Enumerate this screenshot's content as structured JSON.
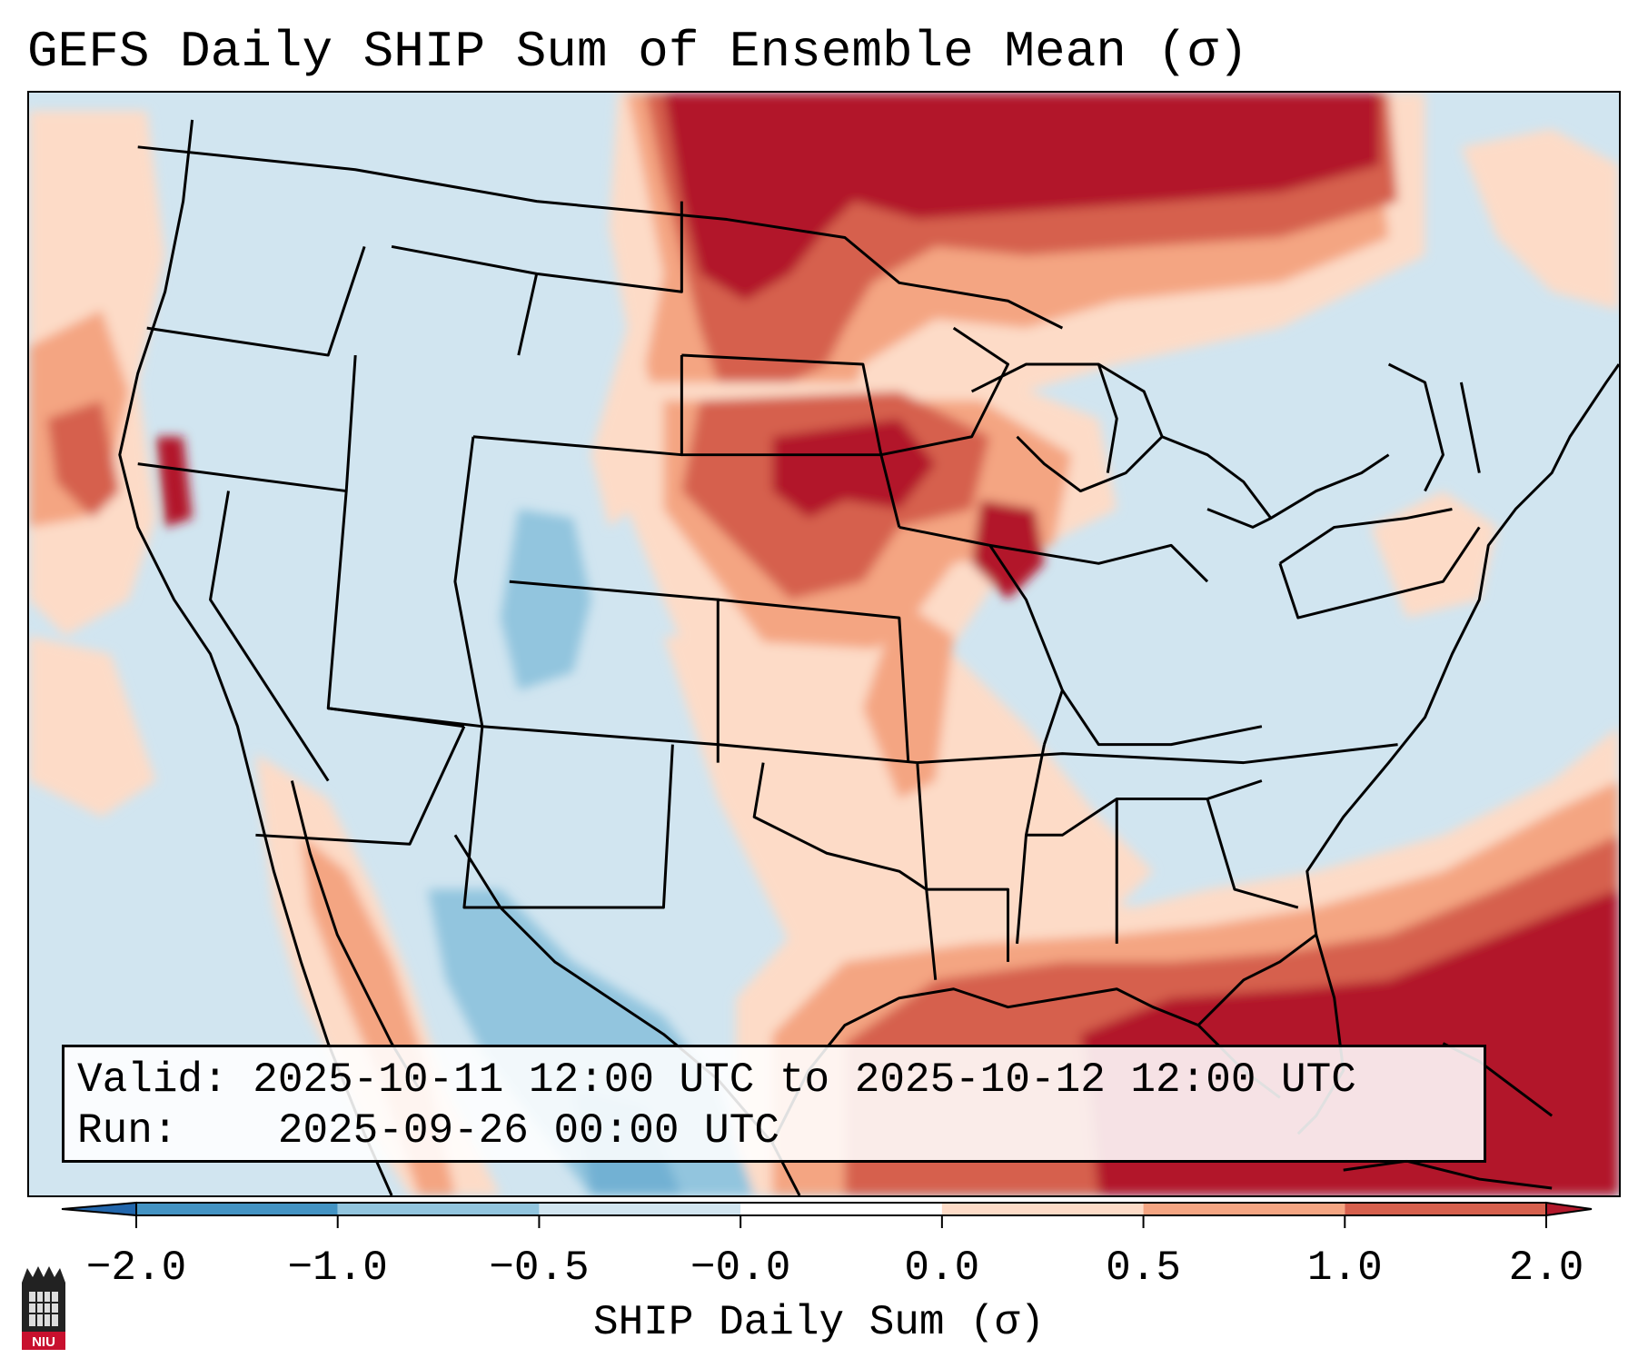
{
  "title": "GEFS Daily SHIP Sum of Ensemble Mean (σ)",
  "valid_label": "Valid:",
  "valid_value": "2025-10-11 12:00 UTC to 2025-10-12 12:00 UTC",
  "run_label": "Run:",
  "run_value": "2025-09-26 00:00 UTC",
  "colorbar": {
    "label": "SHIP Daily Sum (σ)",
    "ticks": [
      "−2.0",
      "−1.0",
      "−0.5",
      "−0.0",
      "0.0",
      "0.5",
      "1.0",
      "2.0"
    ],
    "colors": [
      "#2166ac",
      "#4393c3",
      "#92c5de",
      "#d1e5f0",
      "#ffffff",
      "#fddbc7",
      "#f4a582",
      "#d6604d",
      "#b2182b"
    ]
  },
  "logo": {
    "text": "NIU",
    "color": "#c8102e"
  }
}
